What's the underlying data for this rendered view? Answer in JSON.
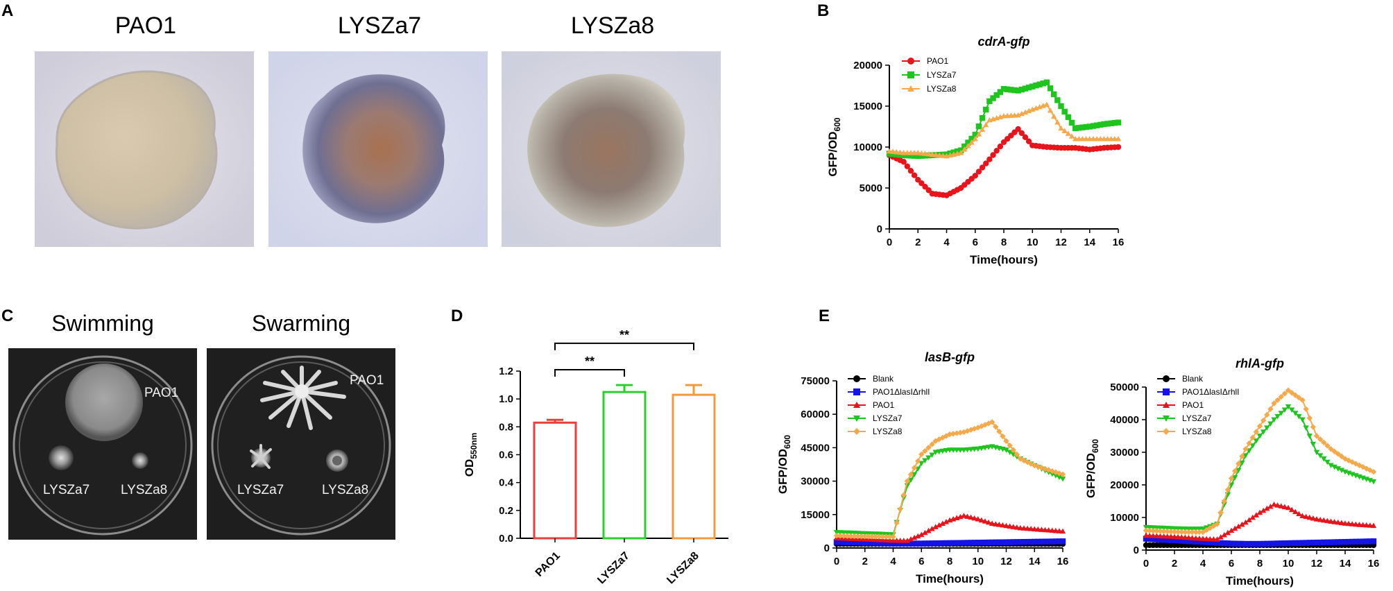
{
  "panels": {
    "a": "A",
    "b": "B",
    "c": "C",
    "d": "D",
    "e": "E"
  },
  "colonies": [
    {
      "label": "PAO1"
    },
    {
      "label": "LYSZa7"
    },
    {
      "label": "LYSZa8"
    }
  ],
  "motility": {
    "swimming": {
      "title": "Swimming",
      "labels": [
        "PAO1",
        "LYSZa7",
        "LYSZa8"
      ]
    },
    "swarming": {
      "title": "Swarming",
      "labels": [
        "PAO1",
        "LYSZa7",
        "LYSZa8"
      ]
    }
  },
  "colors": {
    "pao1": "#e8141b",
    "lysza7": "#1fc51f",
    "lysza8": "#f5a94a",
    "blank": "#000000",
    "mutant": "#1414e6",
    "bar_pao1": "#e8403b",
    "bar_lysza7": "#2ccf2c",
    "bar_lysza8": "#f39a3c"
  },
  "chart_data": [
    {
      "id": "B",
      "type": "line",
      "title": "cdrA-gfp",
      "xlabel": "Time(hours)",
      "ylabel": "GFP/OD600",
      "xlim": [
        0,
        16
      ],
      "ylim": [
        0,
        20000
      ],
      "xticks": [
        0,
        2,
        4,
        6,
        8,
        10,
        12,
        14,
        16
      ],
      "yticks": [
        0,
        5000,
        10000,
        15000,
        20000
      ],
      "x": [
        0,
        1,
        2,
        3,
        4,
        5,
        6,
        7,
        8,
        9,
        10,
        11,
        12,
        13,
        14,
        15,
        16
      ],
      "series": [
        {
          "name": "PAO1",
          "marker": "circle",
          "values": [
            9000,
            8200,
            6000,
            4300,
            4100,
            5000,
            6500,
            8500,
            10600,
            12200,
            10200,
            10000,
            9900,
            9900,
            9700,
            9900,
            10000
          ]
        },
        {
          "name": "LYSZa7",
          "marker": "square",
          "values": [
            9200,
            9000,
            8900,
            9000,
            9100,
            9600,
            11500,
            15600,
            17100,
            16900,
            17400,
            17900,
            15000,
            12300,
            12500,
            12800,
            13000
          ]
        },
        {
          "name": "LYSZa8",
          "marker": "triangle",
          "values": [
            9500,
            9300,
            9300,
            9100,
            8900,
            9300,
            11000,
            13300,
            13800,
            13900,
            14600,
            15200,
            12300,
            11000,
            11000,
            11000,
            11000
          ]
        }
      ]
    },
    {
      "id": "D",
      "type": "bar",
      "title": "",
      "xlabel": "",
      "ylabel": "OD550nm",
      "ylim": [
        0,
        1.2
      ],
      "yticks": [
        0.0,
        0.2,
        0.4,
        0.6,
        0.8,
        1.0,
        1.2
      ],
      "categories": [
        "PAO1",
        "LYSZa7",
        "LYSZa8"
      ],
      "values": [
        0.83,
        1.05,
        1.03
      ],
      "errors": [
        0.02,
        0.05,
        0.07
      ],
      "significance": [
        {
          "from": 0,
          "to": 1,
          "label": "**"
        },
        {
          "from": 0,
          "to": 2,
          "label": "**"
        }
      ]
    },
    {
      "id": "E1",
      "type": "line",
      "title": "lasB-gfp",
      "xlabel": "Time(hours)",
      "ylabel": "GFP/OD600",
      "xlim": [
        0,
        16
      ],
      "ylim": [
        0,
        75000
      ],
      "xticks": [
        0,
        2,
        4,
        6,
        8,
        10,
        12,
        14,
        16
      ],
      "yticks": [
        0,
        15000,
        30000,
        45000,
        60000,
        75000
      ],
      "x": [
        0,
        1,
        2,
        3,
        4,
        5,
        6,
        7,
        8,
        9,
        10,
        11,
        12,
        13,
        14,
        15,
        16
      ],
      "series": [
        {
          "name": "Blank",
          "marker": "circle",
          "values": [
            1800,
            1800,
            1800,
            1800,
            1800,
            1800,
            1800,
            1800,
            1800,
            1800,
            1800,
            1800,
            1800,
            1800,
            1800,
            1800,
            1800
          ]
        },
        {
          "name": "PAO1ΔlasIΔrhlI",
          "marker": "square",
          "values": [
            2700,
            2500,
            2300,
            2100,
            2000,
            2000,
            2000,
            2100,
            2200,
            2300,
            2400,
            2500,
            2600,
            2700,
            2800,
            2900,
            3000
          ]
        },
        {
          "name": "PAO1",
          "marker": "triangle",
          "values": [
            4500,
            4200,
            4000,
            3700,
            3400,
            3300,
            6000,
            9500,
            12500,
            14500,
            13000,
            11000,
            10000,
            9000,
            8500,
            8000,
            7500
          ]
        },
        {
          "name": "LYSZa7",
          "marker": "triangle-down",
          "values": [
            7000,
            6800,
            6500,
            6300,
            6000,
            28000,
            38000,
            43000,
            44000,
            44000,
            44500,
            45500,
            44000,
            40000,
            37000,
            34000,
            31000
          ]
        },
        {
          "name": "LYSZa8",
          "marker": "diamond",
          "values": [
            5500,
            5300,
            5200,
            5100,
            5000,
            30000,
            42000,
            48000,
            51000,
            52000,
            54000,
            56500,
            48000,
            40000,
            37000,
            35000,
            33000
          ]
        }
      ]
    },
    {
      "id": "E2",
      "type": "line",
      "title": "rhlA-gfp",
      "xlabel": "Time(hours)",
      "ylabel": "GFP/OD600",
      "xlim": [
        0,
        16
      ],
      "ylim": [
        0,
        50000
      ],
      "xticks": [
        0,
        2,
        4,
        6,
        8,
        10,
        12,
        14,
        16
      ],
      "yticks": [
        0,
        10000,
        20000,
        30000,
        40000,
        50000
      ],
      "x": [
        0,
        1,
        2,
        3,
        4,
        5,
        6,
        7,
        8,
        9,
        10,
        11,
        12,
        13,
        14,
        15,
        16
      ],
      "series": [
        {
          "name": "Blank",
          "marker": "circle",
          "values": [
            1500,
            1500,
            1500,
            1500,
            1500,
            1500,
            1500,
            1500,
            1500,
            1500,
            1500,
            1500,
            1500,
            1500,
            1500,
            1500,
            1500
          ]
        },
        {
          "name": "PAO1ΔlasIΔrhlI",
          "marker": "square",
          "values": [
            3500,
            3200,
            3000,
            2700,
            2500,
            2200,
            2000,
            1900,
            1900,
            2000,
            2100,
            2200,
            2300,
            2400,
            2500,
            2600,
            2700
          ]
        },
        {
          "name": "PAO1",
          "marker": "triangle",
          "values": [
            4500,
            4300,
            4100,
            3800,
            3500,
            3300,
            6000,
            8500,
            11500,
            14000,
            13000,
            10500,
            9500,
            8800,
            8200,
            7800,
            7500
          ]
        },
        {
          "name": "LYSZa7",
          "marker": "triangle-down",
          "values": [
            7000,
            6800,
            6600,
            6500,
            6500,
            8000,
            20000,
            29000,
            35000,
            40000,
            44000,
            40000,
            30000,
            26000,
            24000,
            22500,
            21000
          ]
        },
        {
          "name": "LYSZa8",
          "marker": "diamond",
          "values": [
            6000,
            5800,
            5600,
            5500,
            5500,
            8000,
            22000,
            31000,
            38000,
            45000,
            49000,
            46000,
            35000,
            31000,
            28000,
            26000,
            24000
          ]
        }
      ]
    }
  ]
}
